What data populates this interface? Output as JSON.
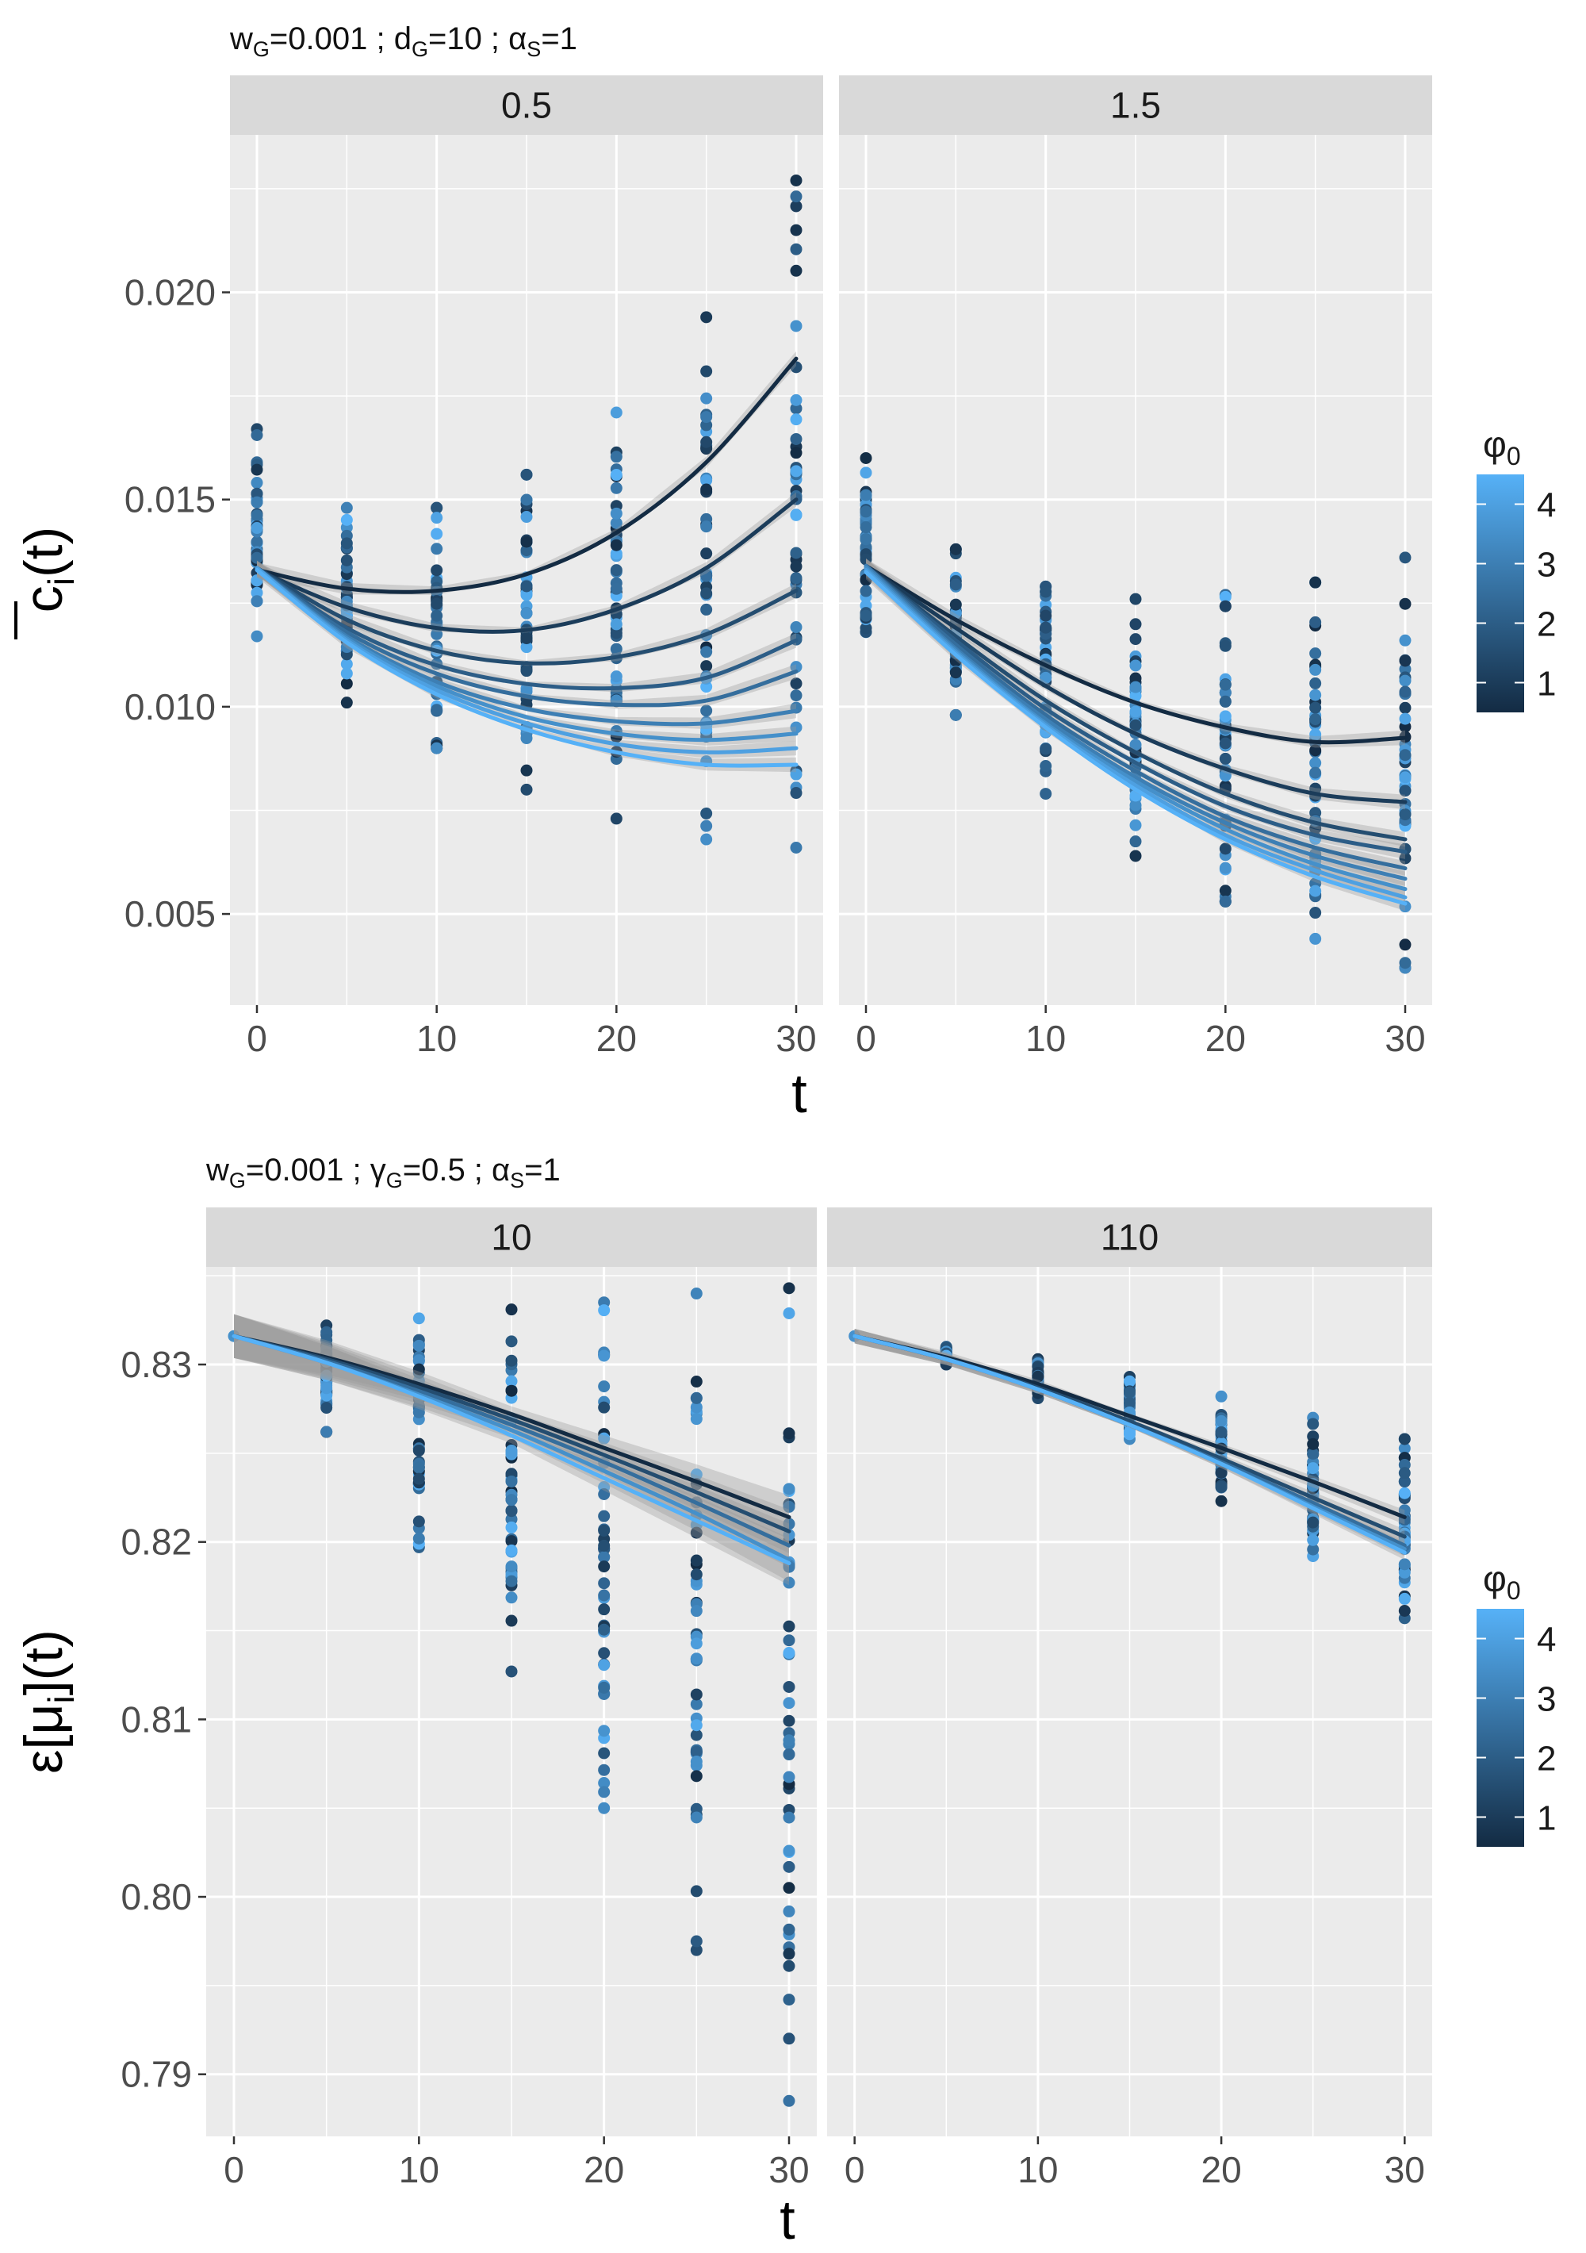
{
  "colors": {
    "panel_bg": "#EBEBEB",
    "strip_bg": "#D9D9D9",
    "grid": "#FFFFFF",
    "low": "#132B43",
    "high": "#56B1F7",
    "ribbon": "#999999"
  },
  "legend": {
    "title": "φ0",
    "title_base": "φ",
    "title_sub": "0",
    "breaks": [
      "4",
      "3",
      "2",
      "1"
    ],
    "range": [
      0.5,
      4.5
    ]
  },
  "chart_data": [
    {
      "type": "scatter",
      "subtitle": {
        "parts": [
          {
            "t": "w"
          },
          {
            "t": "G",
            "sub": true
          },
          {
            "t": "=0.001 ; d"
          },
          {
            "t": "G",
            "sub": true
          },
          {
            "t": "=10 ; "
          },
          {
            "t": "α",
            "greek": true
          },
          {
            "t": "S",
            "sub": true
          },
          {
            "t": "=1"
          }
        ]
      },
      "ylabel": {
        "parts": [
          {
            "t": "c",
            "over": true
          },
          {
            "t": "i",
            "sub": true
          },
          {
            "t": "(t)"
          }
        ]
      },
      "xlabel": "t",
      "xlim": [
        -1.5,
        31.5
      ],
      "ylim": [
        0.0028,
        0.0238
      ],
      "xticks": [
        0,
        10,
        20,
        30
      ],
      "xtick_labels": [
        "0",
        "10",
        "20",
        "30"
      ],
      "yticks": [
        0.005,
        0.01,
        0.015,
        0.02
      ],
      "ytick_labels": [
        "0.005",
        "0.010",
        "0.015",
        "0.020"
      ],
      "x_times": [
        0,
        5,
        10,
        15,
        20,
        25,
        30
      ],
      "panels": [
        {
          "facet": "0.5",
          "series": [
            {
              "phi0": 0.5,
              "y": [
                0.0133,
                0.01285,
                0.0128,
                0.0132,
                0.0142,
                0.0159,
                0.0184
              ]
            },
            {
              "phi0": 1.0,
              "y": [
                0.0133,
                0.0124,
                0.0119,
                0.01185,
                0.01235,
                0.01335,
                0.015
              ]
            },
            {
              "phi0": 1.5,
              "y": [
                0.01335,
                0.0121,
                0.01135,
                0.01105,
                0.0112,
                0.01175,
                0.0128
              ]
            },
            {
              "phi0": 2.0,
              "y": [
                0.01335,
                0.0119,
                0.011,
                0.01055,
                0.01045,
                0.0107,
                0.0116
              ]
            },
            {
              "phi0": 2.5,
              "y": [
                0.01335,
                0.0118,
                0.0108,
                0.01025,
                0.01005,
                0.01015,
                0.01085
              ]
            },
            {
              "phi0": 3.0,
              "y": [
                0.01335,
                0.0117,
                0.0106,
                0.00995,
                0.00965,
                0.0096,
                0.0099
              ]
            },
            {
              "phi0": 3.5,
              "y": [
                0.01335,
                0.01165,
                0.0105,
                0.00975,
                0.00935,
                0.0092,
                0.00935
              ]
            },
            {
              "phi0": 4.0,
              "y": [
                0.01335,
                0.0116,
                0.0104,
                0.0096,
                0.0091,
                0.0089,
                0.009
              ]
            },
            {
              "phi0": 4.5,
              "y": [
                0.0133,
                0.01155,
                0.0103,
                0.00945,
                0.0089,
                0.0086,
                0.0086
              ]
            }
          ],
          "point_ranges": [
            {
              "t": 0,
              "min": 0.0117,
              "max": 0.0167
            },
            {
              "t": 5,
              "min": 0.0101,
              "max": 0.0148
            },
            {
              "t": 10,
              "min": 0.009,
              "max": 0.0148
            },
            {
              "t": 15,
              "min": 0.008,
              "max": 0.0156
            },
            {
              "t": 20,
              "min": 0.0073,
              "max": 0.0171
            },
            {
              "t": 25,
              "min": 0.0068,
              "max": 0.0194
            },
            {
              "t": 30,
              "min": 0.0066,
              "max": 0.0227
            }
          ]
        },
        {
          "facet": "1.5",
          "series": [
            {
              "phi0": 0.5,
              "y": [
                0.0134,
                0.0121,
                0.011,
                0.0101,
                0.0095,
                0.00915,
                0.00925
              ]
            },
            {
              "phi0": 1.0,
              "y": [
                0.0134,
                0.0119,
                0.0105,
                0.00935,
                0.0085,
                0.0079,
                0.0077
              ]
            },
            {
              "phi0": 1.5,
              "y": [
                0.0134,
                0.0117,
                0.01015,
                0.0089,
                0.0079,
                0.0072,
                0.0068
              ]
            },
            {
              "phi0": 2.0,
              "y": [
                0.0134,
                0.0116,
                0.00995,
                0.00865,
                0.0076,
                0.0069,
                0.0065
              ]
            },
            {
              "phi0": 2.5,
              "y": [
                0.0134,
                0.0115,
                0.0098,
                0.00845,
                0.00735,
                0.0066,
                0.0061
              ]
            },
            {
              "phi0": 3.0,
              "y": [
                0.0134,
                0.0114,
                0.0097,
                0.0083,
                0.0072,
                0.0064,
                0.00585
              ]
            },
            {
              "phi0": 3.5,
              "y": [
                0.01335,
                0.01135,
                0.0096,
                0.0082,
                0.00705,
                0.0062,
                0.0056
              ]
            },
            {
              "phi0": 4.0,
              "y": [
                0.0133,
                0.0113,
                0.00955,
                0.0081,
                0.0069,
                0.00605,
                0.0054
              ]
            },
            {
              "phi0": 4.5,
              "y": [
                0.01325,
                0.01125,
                0.0095,
                0.008,
                0.0068,
                0.0059,
                0.00525
              ]
            }
          ],
          "point_ranges": [
            {
              "t": 0,
              "min": 0.0118,
              "max": 0.016
            },
            {
              "t": 5,
              "min": 0.0098,
              "max": 0.0138
            },
            {
              "t": 10,
              "min": 0.0079,
              "max": 0.0129
            },
            {
              "t": 15,
              "min": 0.0064,
              "max": 0.0126
            },
            {
              "t": 20,
              "min": 0.0053,
              "max": 0.0127
            },
            {
              "t": 25,
              "min": 0.0044,
              "max": 0.013
            },
            {
              "t": 30,
              "min": 0.0037,
              "max": 0.0136
            }
          ]
        }
      ]
    },
    {
      "type": "scatter",
      "subtitle": {
        "parts": [
          {
            "t": "w"
          },
          {
            "t": "G",
            "sub": true
          },
          {
            "t": "=0.001 ; "
          },
          {
            "t": "γ",
            "greek": true
          },
          {
            "t": "G",
            "sub": true
          },
          {
            "t": "=0.5 ; "
          },
          {
            "t": "α",
            "greek": true
          },
          {
            "t": "S",
            "sub": true
          },
          {
            "t": "=1"
          }
        ]
      },
      "ylabel": {
        "parts": [
          {
            "t": "ε[μ"
          },
          {
            "t": "i",
            "sub": true
          },
          {
            "t": "](t)"
          }
        ]
      },
      "xlabel": "t",
      "xlim": [
        -1.5,
        31.5
      ],
      "ylim": [
        0.7865,
        0.8355
      ],
      "xticks": [
        0,
        10,
        20,
        30
      ],
      "xtick_labels": [
        "0",
        "10",
        "20",
        "30"
      ],
      "yticks": [
        0.79,
        0.8,
        0.81,
        0.82,
        0.83
      ],
      "ytick_labels": [
        "0.79",
        "0.80",
        "0.81",
        "0.82",
        "0.83"
      ],
      "x_times": [
        0,
        5,
        10,
        15,
        20,
        25,
        30
      ],
      "panels": [
        {
          "facet": "10",
          "series": [
            {
              "phi0": 0.5,
              "y": [
                0.8316,
                0.8304,
                0.8289,
                0.8272,
                0.8253,
                0.8234,
                0.8214
              ]
            },
            {
              "phi0": 1.5,
              "y": [
                0.8316,
                0.8303,
                0.8287,
                0.8269,
                0.8249,
                0.8228,
                0.8206
              ]
            },
            {
              "phi0": 2.5,
              "y": [
                0.8316,
                0.8302,
                0.8285,
                0.8266,
                0.8245,
                0.8222,
                0.8198
              ]
            },
            {
              "phi0": 3.5,
              "y": [
                0.8316,
                0.8301,
                0.8283,
                0.8263,
                0.824,
                0.8216,
                0.819
              ]
            },
            {
              "phi0": 4.5,
              "y": [
                0.8316,
                0.8301,
                0.8282,
                0.826,
                0.8236,
                0.8212,
                0.8188
              ]
            }
          ],
          "point_ranges": [
            {
              "t": 0,
              "min": 0.8316,
              "max": 0.8316
            },
            {
              "t": 5,
              "min": 0.8262,
              "max": 0.8322
            },
            {
              "t": 10,
              "min": 0.8197,
              "max": 0.8326
            },
            {
              "t": 15,
              "min": 0.8127,
              "max": 0.8331
            },
            {
              "t": 20,
              "min": 0.805,
              "max": 0.8335
            },
            {
              "t": 25,
              "min": 0.797,
              "max": 0.834
            },
            {
              "t": 30,
              "min": 0.7885,
              "max": 0.8343
            }
          ]
        },
        {
          "facet": "110",
          "series": [
            {
              "phi0": 0.5,
              "y": [
                0.8316,
                0.8304,
                0.8289,
                0.8271,
                0.8253,
                0.8234,
                0.8214
              ]
            },
            {
              "phi0": 1.5,
              "y": [
                0.8316,
                0.8303,
                0.8287,
                0.8268,
                0.8247,
                0.8225,
                0.8203
              ]
            },
            {
              "phi0": 2.5,
              "y": [
                0.8316,
                0.8303,
                0.8286,
                0.8266,
                0.8245,
                0.8222,
                0.8198
              ]
            },
            {
              "phi0": 3.5,
              "y": [
                0.8316,
                0.8303,
                0.8286,
                0.8266,
                0.8244,
                0.822,
                0.8196
              ]
            },
            {
              "phi0": 4.5,
              "y": [
                0.8316,
                0.8303,
                0.8286,
                0.8266,
                0.8244,
                0.8219,
                0.8194
              ]
            }
          ],
          "point_ranges": [
            {
              "t": 0,
              "min": 0.8316,
              "max": 0.8316
            },
            {
              "t": 5,
              "min": 0.83,
              "max": 0.831
            },
            {
              "t": 10,
              "min": 0.8281,
              "max": 0.8303
            },
            {
              "t": 15,
              "min": 0.8258,
              "max": 0.8293
            },
            {
              "t": 20,
              "min": 0.8223,
              "max": 0.8282
            },
            {
              "t": 25,
              "min": 0.8192,
              "max": 0.827
            },
            {
              "t": 30,
              "min": 0.8157,
              "max": 0.8258
            }
          ]
        }
      ]
    }
  ]
}
